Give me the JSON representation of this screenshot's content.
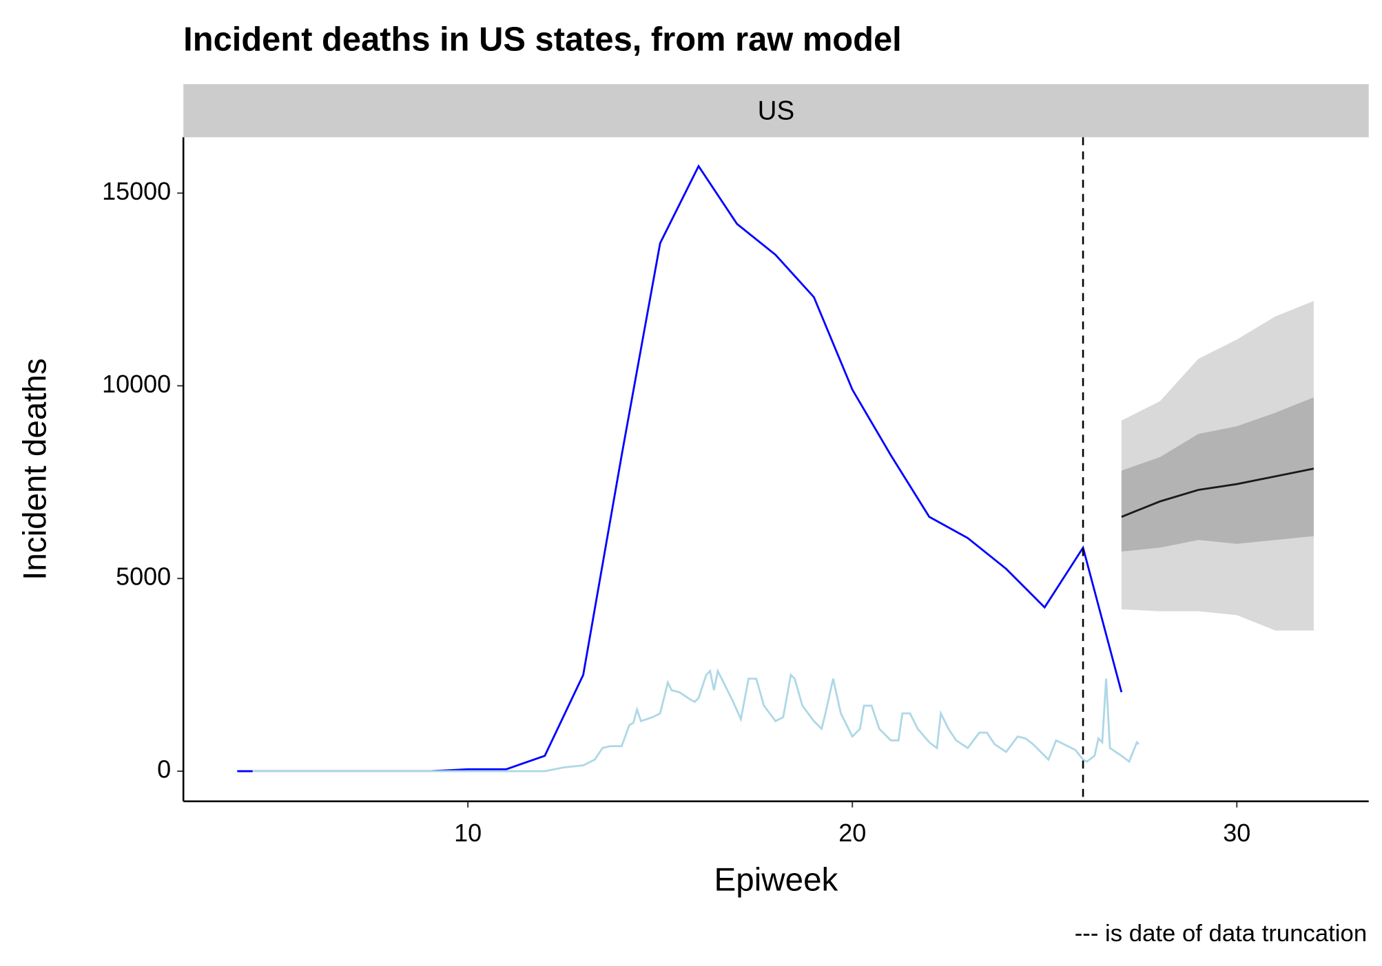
{
  "chart_data": {
    "type": "line",
    "title": "Incident deaths in US states, from raw model",
    "panel": "US",
    "x_label": "Epiweek",
    "y_label": "Incident deaths",
    "caption": "--- is date of data truncation",
    "xlim": [
      2.6,
      33.43
    ],
    "ylim": [
      -781,
      16449
    ],
    "xticks": [
      10,
      20,
      30
    ],
    "yticks": [
      0,
      5000,
      10000,
      15000
    ],
    "truncation_x": 26,
    "bands": [
      {
        "color": "#d9d9d9",
        "x": [
          27,
          28,
          29,
          30,
          31,
          32
        ],
        "lower": [
          4200,
          4150,
          4150,
          4050,
          3650,
          3650
        ],
        "upper": [
          9100,
          9600,
          10700,
          11200,
          11800,
          12200
        ]
      },
      {
        "color": "#b3b3b3",
        "x": [
          27,
          28,
          29,
          30,
          31,
          32
        ],
        "lower": [
          5700,
          5800,
          6000,
          5900,
          6000,
          6100
        ],
        "upper": [
          7800,
          8150,
          8750,
          8950,
          9300,
          9700
        ]
      }
    ],
    "series": [
      {
        "color": "#0000ff",
        "x": [
          4,
          5,
          6,
          7,
          8,
          9,
          10,
          11,
          12,
          13,
          14,
          15,
          16,
          17,
          18,
          19,
          20,
          21,
          22,
          23,
          24,
          25,
          26,
          27
        ],
        "values": [
          0,
          0,
          0,
          0,
          0,
          0,
          50,
          50,
          400,
          2500,
          8200,
          13700,
          15700,
          14200,
          13400,
          12300,
          9900,
          8200,
          6600,
          6050,
          5250,
          4250,
          5800,
          2050
        ]
      },
      {
        "color": "#add8e6",
        "x": [
          4.4,
          12,
          12.5,
          13,
          13.3,
          13.5,
          13.7,
          14,
          14.2,
          14.3,
          14.4,
          14.5,
          14.8,
          15,
          15.2,
          15.3,
          15.5,
          15.8,
          15.9,
          16,
          16.2,
          16.3,
          16.4,
          16.5,
          16.7,
          16.9,
          17.1,
          17.3,
          17.5,
          17.7,
          18,
          18.2,
          18.4,
          18.5,
          18.7,
          19,
          19.2,
          19.3,
          19.5,
          19.7,
          20,
          20.2,
          20.3,
          20.5,
          20.7,
          21,
          21.2,
          21.3,
          21.5,
          21.7,
          22,
          22.2,
          22.3,
          22.5,
          22.7,
          23,
          23.3,
          23.5,
          23.7,
          24,
          24.3,
          24.5,
          24.7,
          25,
          25.1,
          25.3,
          25.5,
          25.8,
          26,
          26.1,
          26.3,
          26.4,
          26.5,
          26.6,
          26.7,
          27,
          27.2,
          27.3,
          27.4,
          27.45
        ],
        "values": [
          0,
          0,
          100,
          150,
          300,
          600,
          650,
          650,
          1200,
          1250,
          1600,
          1300,
          1400,
          1500,
          2300,
          2100,
          2050,
          1850,
          1800,
          1900,
          2500,
          2600,
          2100,
          2600,
          2200,
          1800,
          1350,
          2400,
          2400,
          1700,
          1300,
          1400,
          2500,
          2400,
          1700,
          1300,
          1100,
          1500,
          2400,
          1500,
          900,
          1100,
          1700,
          1700,
          1100,
          800,
          800,
          1500,
          1500,
          1100,
          750,
          600,
          1500,
          1100,
          800,
          600,
          1000,
          1000,
          700,
          500,
          900,
          850,
          700,
          400,
          300,
          800,
          700,
          550,
          300,
          250,
          400,
          850,
          750,
          2400,
          600,
          400,
          250,
          500,
          750,
          700
        ]
      },
      {
        "color": "#1a1a1a",
        "x": [
          27,
          28,
          29,
          30,
          31,
          32
        ],
        "values": [
          6600,
          7000,
          7300,
          7450,
          7650,
          7850
        ]
      }
    ]
  }
}
